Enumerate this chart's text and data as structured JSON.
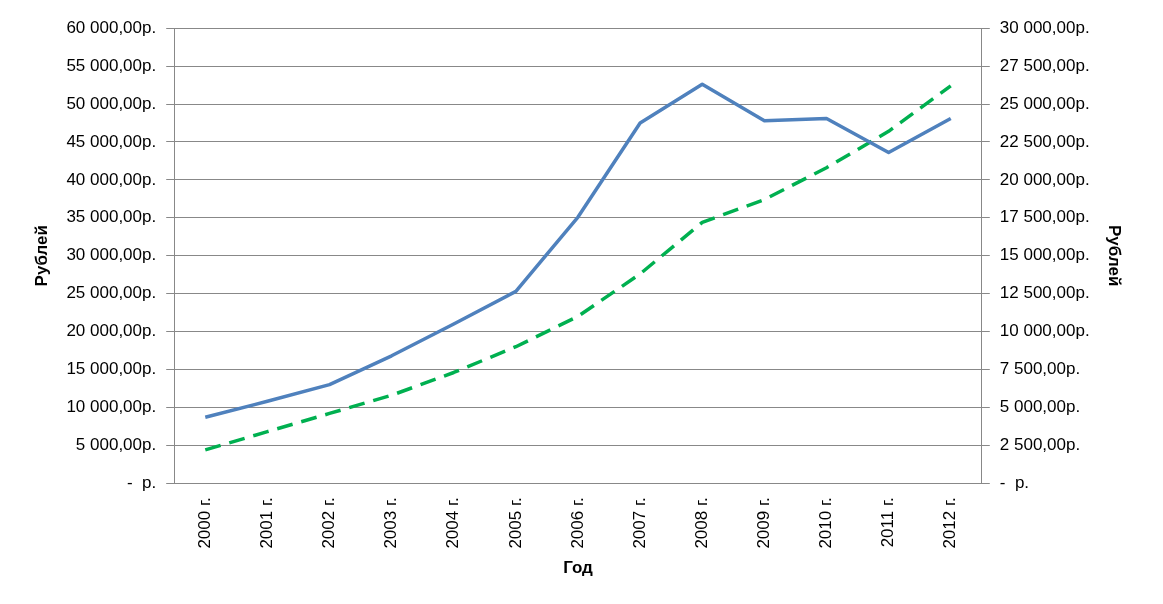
{
  "chart_data": {
    "type": "line",
    "xlabel": "Год",
    "ylabel": "Рублей",
    "y2label": "Рублей",
    "categories": [
      "2000 г.",
      "2001 г.",
      "2002 г.",
      "2003 г.",
      "2004 г.",
      "2005 г.",
      "2006 г.",
      "2007 г.",
      "2008 г.",
      "2009 г.",
      "2010 г.",
      "2011 г.",
      "2012 г."
    ],
    "series": [
      {
        "color": "#4f81bd",
        "line_style": "solid",
        "values": [
          8700,
          10800,
          13000,
          16800,
          21000,
          25300,
          35100,
          47500,
          52600,
          47800,
          48100,
          43600,
          48100
        ]
      },
      {
        "color": "#00b050",
        "line_style": "dashed",
        "axis": "y2",
        "values": [
          2200,
          3400,
          4600,
          5800,
          7300,
          9000,
          11000,
          13800,
          17200,
          18700,
          20800,
          23200,
          26200
        ]
      }
    ],
    "ylim": [
      0,
      60000
    ],
    "yticks": [
      {
        "value": 0,
        "label": "-  р."
      },
      {
        "value": 5000,
        "label": "5 000,00р."
      },
      {
        "value": 10000,
        "label": "10 000,00р."
      },
      {
        "value": 15000,
        "label": "15 000,00р."
      },
      {
        "value": 20000,
        "label": "20 000,00р."
      },
      {
        "value": 25000,
        "label": "25 000,00р."
      },
      {
        "value": 30000,
        "label": "30 000,00р."
      },
      {
        "value": 35000,
        "label": "35 000,00р."
      },
      {
        "value": 40000,
        "label": "40 000,00р."
      },
      {
        "value": 45000,
        "label": "45 000,00р."
      },
      {
        "value": 50000,
        "label": "50 000,00р."
      },
      {
        "value": 55000,
        "label": "55 000,00р."
      },
      {
        "value": 60000,
        "label": "60 000,00р."
      }
    ],
    "y2lim": [
      0,
      30000
    ],
    "y2ticks": [
      {
        "value": 0,
        "label": "-  р."
      },
      {
        "value": 2500,
        "label": "2 500,00р."
      },
      {
        "value": 5000,
        "label": "5 000,00р."
      },
      {
        "value": 7500,
        "label": "7 500,00р."
      },
      {
        "value": 10000,
        "label": "10 000,00р."
      },
      {
        "value": 12500,
        "label": "12 500,00р."
      },
      {
        "value": 15000,
        "label": "15 000,00р."
      },
      {
        "value": 17500,
        "label": "17 500,00р."
      },
      {
        "value": 20000,
        "label": "20 000,00р."
      },
      {
        "value": 22500,
        "label": "22 500,00р."
      },
      {
        "value": 25000,
        "label": "25 000,00р."
      },
      {
        "value": 27500,
        "label": "27 500,00р."
      },
      {
        "value": 30000,
        "label": "30 000,00р."
      }
    ],
    "grid": "y",
    "legend": false,
    "marker": "none"
  }
}
